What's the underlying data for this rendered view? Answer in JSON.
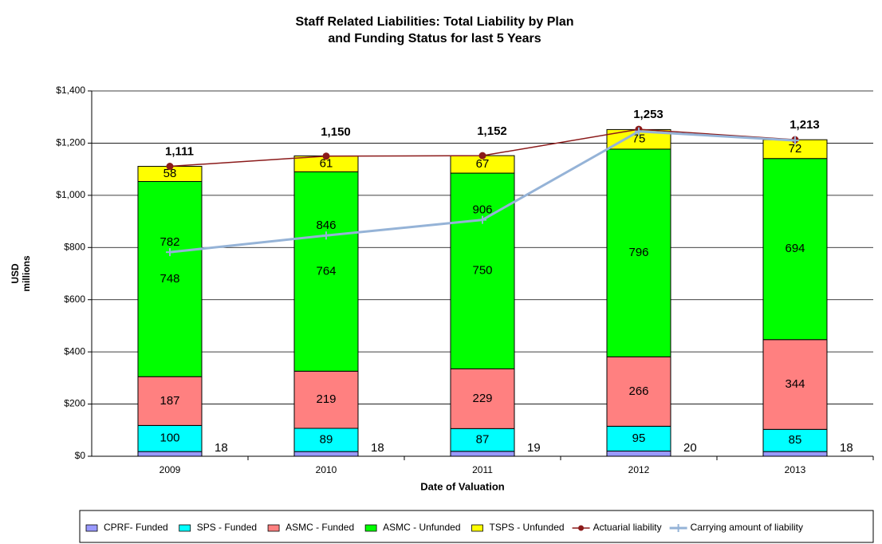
{
  "chart_data": {
    "type": "stacked_bar_line",
    "title": [
      "Staff Related Liabilities: Total Liability by Plan",
      "and Funding Status for last 5 Years"
    ],
    "xlabel": "Date of Valuation",
    "ylabel": [
      "USD",
      "millions"
    ],
    "categories": [
      "2009",
      "2010",
      "2011",
      "2012",
      "2013"
    ],
    "ylim": [
      0,
      1400
    ],
    "yticks": [
      {
        "value": 0,
        "label": "$0"
      },
      {
        "value": 200,
        "label": "$200"
      },
      {
        "value": 400,
        "label": "$400"
      },
      {
        "value": 600,
        "label": "$600"
      },
      {
        "value": 800,
        "label": "$800"
      },
      {
        "value": 1000,
        "label": "$1,000"
      },
      {
        "value": 1200,
        "label": "$1,200"
      },
      {
        "value": 1400,
        "label": "$1,400"
      }
    ],
    "grid": true,
    "legend": "bottom",
    "series": [
      {
        "name": "CPRF- Funded",
        "kind": "bar",
        "color": "#9999ff",
        "values": [
          18,
          18,
          19,
          20,
          18
        ]
      },
      {
        "name": "SPS - Funded",
        "kind": "bar",
        "color": "#00ffff",
        "values": [
          100,
          89,
          87,
          95,
          85
        ]
      },
      {
        "name": "ASMC - Funded",
        "kind": "bar",
        "color": "#ff8080",
        "values": [
          187,
          219,
          229,
          266,
          344
        ]
      },
      {
        "name": "ASMC - Unfunded",
        "kind": "bar",
        "color": "#00ff00",
        "values": [
          748,
          764,
          750,
          796,
          694
        ]
      },
      {
        "name": "TSPS - Unfunded",
        "kind": "bar",
        "color": "#ffff00",
        "values": [
          58,
          61,
          67,
          75,
          72
        ]
      },
      {
        "name": "Actuarial liability",
        "kind": "line",
        "color": "#8b1a1a",
        "values": [
          1111,
          1150,
          1152,
          1253,
          1213
        ],
        "value_labels": [
          "1,111",
          "1,150",
          "1,152",
          "1,253",
          "1,213"
        ]
      },
      {
        "name": "Carrying amount of liability",
        "kind": "line",
        "color": "#95b3d7",
        "values": [
          782,
          846,
          906,
          1245,
          1210
        ],
        "value_labels": [
          "782",
          "846",
          "906",
          null,
          null
        ]
      }
    ]
  }
}
